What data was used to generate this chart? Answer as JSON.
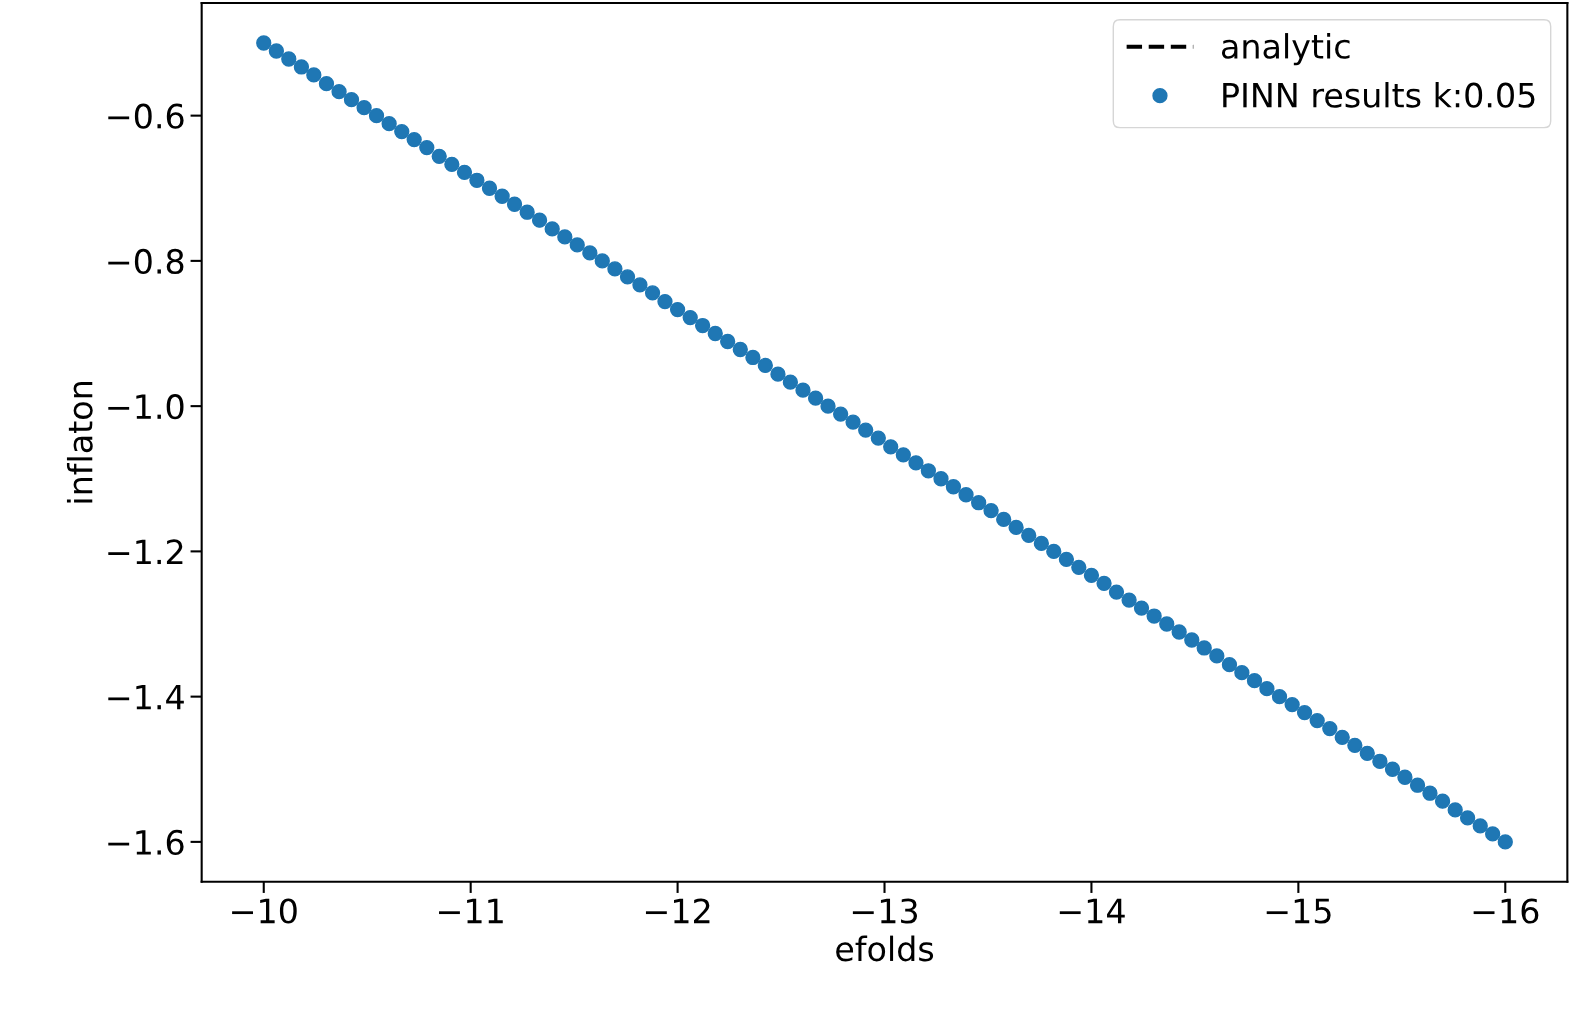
{
  "chart_data": {
    "type": "line",
    "xlabel": "efolds",
    "ylabel": "inflaton",
    "xlim": [
      -9.7,
      -16.3
    ],
    "ylim": [
      -1.655,
      -0.445
    ],
    "xticks": [
      {
        "value": -10,
        "label": "−10"
      },
      {
        "value": -11,
        "label": "−11"
      },
      {
        "value": -12,
        "label": "−12"
      },
      {
        "value": -13,
        "label": "−13"
      },
      {
        "value": -14,
        "label": "−14"
      },
      {
        "value": -15,
        "label": "−15"
      },
      {
        "value": -16,
        "label": "−16"
      }
    ],
    "yticks": [
      {
        "value": -0.6,
        "label": "−0.6"
      },
      {
        "value": -0.8,
        "label": "−0.8"
      },
      {
        "value": -1.0,
        "label": "−1.0"
      },
      {
        "value": -1.2,
        "label": "−1.2"
      },
      {
        "value": -1.4,
        "label": "−1.4"
      },
      {
        "value": -1.6,
        "label": "−1.6"
      }
    ],
    "legend": "top right",
    "grid": false,
    "series": [
      {
        "name": "analytic",
        "color": "#000000",
        "line_style": "dashed",
        "marker": "none"
      },
      {
        "name": "PINN results k:0.05",
        "type": "scatter",
        "color": "#1f77b4",
        "marker": "circle",
        "x": [
          -10,
          -10.061,
          -10.121,
          -10.182,
          -10.242,
          -10.303,
          -10.364,
          -10.424,
          -10.485,
          -10.545,
          -10.606,
          -10.667,
          -10.727,
          -10.788,
          -10.848,
          -10.909,
          -10.97,
          -11.03,
          -11.091,
          -11.152,
          -11.212,
          -11.273,
          -11.333,
          -11.394,
          -11.455,
          -11.515,
          -11.576,
          -11.636,
          -11.697,
          -11.758,
          -11.818,
          -11.879,
          -11.939,
          -12.0,
          -12.061,
          -12.121,
          -12.182,
          -12.242,
          -12.303,
          -12.364,
          -12.424,
          -12.485,
          -12.545,
          -12.606,
          -12.667,
          -12.727,
          -12.788,
          -12.848,
          -12.909,
          -12.97,
          -13.03,
          -13.091,
          -13.152,
          -13.212,
          -13.273,
          -13.333,
          -13.394,
          -13.455,
          -13.515,
          -13.576,
          -13.636,
          -13.697,
          -13.758,
          -13.818,
          -13.879,
          -13.939,
          -14.0,
          -14.061,
          -14.121,
          -14.182,
          -14.242,
          -14.303,
          -14.364,
          -14.424,
          -14.485,
          -14.545,
          -14.606,
          -14.667,
          -14.727,
          -14.788,
          -14.848,
          -14.909,
          -14.97,
          -15.03,
          -15.091,
          -15.152,
          -15.212,
          -15.273,
          -15.333,
          -15.394,
          -15.455,
          -15.515,
          -15.576,
          -15.636,
          -15.697,
          -15.758,
          -15.818,
          -15.879,
          -15.939,
          -16.0
        ],
        "values": [
          -0.5,
          -0.511,
          -0.522,
          -0.533,
          -0.544,
          -0.556,
          -0.567,
          -0.578,
          -0.589,
          -0.6,
          -0.611,
          -0.622,
          -0.633,
          -0.644,
          -0.656,
          -0.667,
          -0.678,
          -0.689,
          -0.7,
          -0.711,
          -0.722,
          -0.733,
          -0.744,
          -0.756,
          -0.767,
          -0.778,
          -0.789,
          -0.8,
          -0.811,
          -0.822,
          -0.833,
          -0.844,
          -0.856,
          -0.867,
          -0.878,
          -0.889,
          -0.9,
          -0.911,
          -0.922,
          -0.933,
          -0.944,
          -0.956,
          -0.967,
          -0.978,
          -0.989,
          -1.0,
          -1.011,
          -1.022,
          -1.033,
          -1.044,
          -1.056,
          -1.067,
          -1.078,
          -1.089,
          -1.1,
          -1.111,
          -1.122,
          -1.133,
          -1.144,
          -1.156,
          -1.167,
          -1.178,
          -1.189,
          -1.2,
          -1.211,
          -1.222,
          -1.233,
          -1.244,
          -1.256,
          -1.267,
          -1.278,
          -1.289,
          -1.3,
          -1.311,
          -1.322,
          -1.333,
          -1.344,
          -1.356,
          -1.367,
          -1.378,
          -1.389,
          -1.4,
          -1.411,
          -1.422,
          -1.433,
          -1.444,
          -1.456,
          -1.467,
          -1.478,
          -1.489,
          -1.5,
          -1.511,
          -1.522,
          -1.533,
          -1.544,
          -1.556,
          -1.567,
          -1.578,
          -1.589,
          -1.6
        ]
      }
    ]
  }
}
